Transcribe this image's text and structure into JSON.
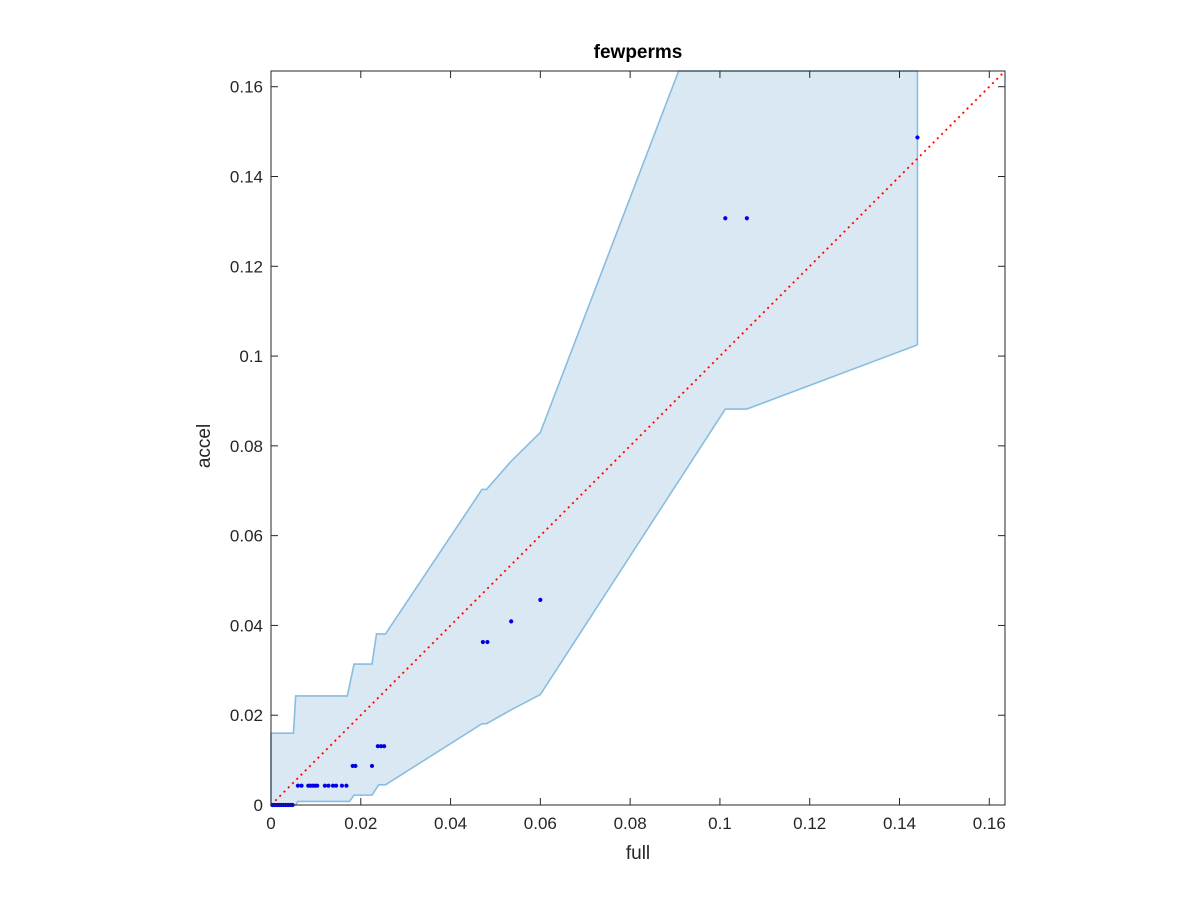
{
  "chart_data": {
    "type": "scatter",
    "title": "fewperms",
    "xlabel": "full",
    "ylabel": "accel",
    "xlim": [
      0,
      0.1635
    ],
    "ylim": [
      0,
      0.1635
    ],
    "xticks": [
      "0",
      "0.02",
      "0.04",
      "0.06",
      "0.08",
      "0.1",
      "0.12",
      "0.14",
      "0.16"
    ],
    "yticks": [
      "0",
      "0.02",
      "0.04",
      "0.06",
      "0.08",
      "0.1",
      "0.12",
      "0.14",
      "0.16"
    ],
    "tick_values": [
      0,
      0.02,
      0.04,
      0.06,
      0.08,
      0.1,
      0.12,
      0.14,
      0.16
    ],
    "grid": false,
    "colors": {
      "band_fill": "#dae8f4",
      "band_edge": "#88bde0",
      "points": "#0000e6",
      "diagonal": "#ff0000",
      "axes": "#262626"
    },
    "band": {
      "upper": [
        [
          0,
          0.016
        ],
        [
          0.005,
          0.016
        ],
        [
          0.0055,
          0.0243
        ],
        [
          0.017,
          0.0243
        ],
        [
          0.0185,
          0.0314
        ],
        [
          0.0225,
          0.0314
        ],
        [
          0.0235,
          0.0381
        ],
        [
          0.0255,
          0.0381
        ],
        [
          0.047,
          0.0703
        ],
        [
          0.048,
          0.0703
        ],
        [
          0.0535,
          0.0766
        ],
        [
          0.06,
          0.083
        ],
        [
          0.0908,
          0.1635
        ],
        [
          0.144,
          0.1635
        ]
      ],
      "lower": [
        [
          0,
          0
        ],
        [
          0.0055,
          0
        ],
        [
          0.006,
          0.0008
        ],
        [
          0.0175,
          0.0008
        ],
        [
          0.0185,
          0.0022
        ],
        [
          0.0225,
          0.0022
        ],
        [
          0.024,
          0.0045
        ],
        [
          0.0255,
          0.0045
        ],
        [
          0.047,
          0.0181
        ],
        [
          0.048,
          0.0181
        ],
        [
          0.0535,
          0.0212
        ],
        [
          0.06,
          0.0246
        ],
        [
          0.1012,
          0.0882
        ],
        [
          0.106,
          0.0882
        ],
        [
          0.144,
          0.1025
        ]
      ]
    },
    "points": [
      [
        0.0003,
        0.0
      ],
      [
        0.0008,
        0.0
      ],
      [
        0.0013,
        0.0
      ],
      [
        0.0018,
        0.0
      ],
      [
        0.0023,
        0.0
      ],
      [
        0.0028,
        0.0
      ],
      [
        0.0033,
        0.0
      ],
      [
        0.0038,
        0.0
      ],
      [
        0.0043,
        0.0
      ],
      [
        0.0048,
        0.0
      ],
      [
        0.006,
        0.0043
      ],
      [
        0.0068,
        0.0043
      ],
      [
        0.0083,
        0.0043
      ],
      [
        0.0088,
        0.0043
      ],
      [
        0.0093,
        0.0043
      ],
      [
        0.0098,
        0.0043
      ],
      [
        0.0103,
        0.0043
      ],
      [
        0.012,
        0.0043
      ],
      [
        0.0128,
        0.0043
      ],
      [
        0.0138,
        0.0043
      ],
      [
        0.0145,
        0.0043
      ],
      [
        0.0158,
        0.0043
      ],
      [
        0.0168,
        0.0043
      ],
      [
        0.0182,
        0.0087
      ],
      [
        0.0188,
        0.0087
      ],
      [
        0.0225,
        0.0087
      ],
      [
        0.0238,
        0.0131
      ],
      [
        0.0245,
        0.0131
      ],
      [
        0.0252,
        0.0131
      ],
      [
        0.0472,
        0.0363
      ],
      [
        0.0482,
        0.0363
      ],
      [
        0.0535,
        0.0409
      ],
      [
        0.06,
        0.0457
      ],
      [
        0.1012,
        0.1307
      ],
      [
        0.106,
        0.1307
      ],
      [
        0.144,
        0.1487
      ]
    ],
    "diagonal": [
      [
        0,
        0
      ],
      [
        0.1635,
        0.1635
      ]
    ]
  }
}
